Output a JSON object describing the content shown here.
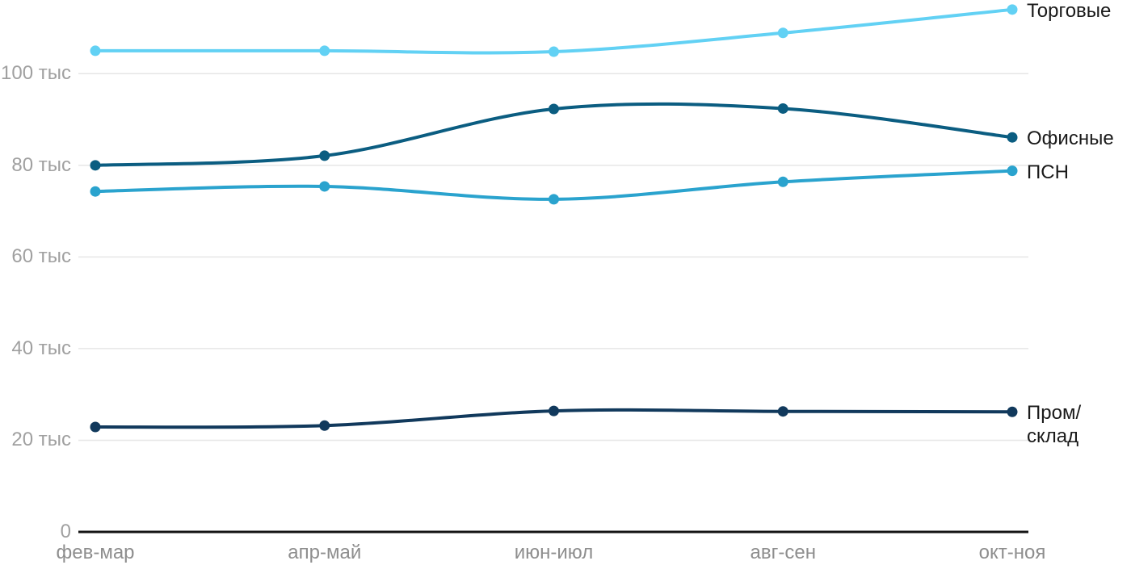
{
  "chart_data": {
    "type": "line",
    "categories": [
      "фев-мар",
      "апр-май",
      "июн-июл",
      "авг-сен",
      "окт-ноя"
    ],
    "y_axis": {
      "ticks": [
        {
          "value": 0,
          "label": "0"
        },
        {
          "value": 20000,
          "label": "20 тыс"
        },
        {
          "value": 40000,
          "label": "40 тыс"
        },
        {
          "value": 60000,
          "label": "60 тыс"
        },
        {
          "value": 80000,
          "label": "80 тыс"
        },
        {
          "value": 100000,
          "label": "100 тыс"
        }
      ],
      "range": [
        0,
        116000
      ],
      "grid": true
    },
    "series": [
      {
        "name": "Торговые",
        "color": "#62d1f4",
        "values": [
          105000,
          105000,
          104800,
          108900,
          114000
        ]
      },
      {
        "name": "Офисные",
        "color": "#0b5d81",
        "values": [
          80000,
          82100,
          92300,
          92400,
          86100
        ]
      },
      {
        "name": "ПСН",
        "color": "#2aa3ce",
        "values": [
          74300,
          75400,
          72600,
          76400,
          78800
        ]
      },
      {
        "name": "Пром/склад",
        "color": "#11395c",
        "values": [
          22900,
          23200,
          26400,
          26300,
          26200
        ]
      }
    ],
    "legend_position": "right-of-line-ends",
    "title": "",
    "xlabel": "",
    "ylabel": ""
  },
  "colors": {
    "background": "#ffffff",
    "gridline": "#e6e6e6",
    "axis": "#141414",
    "y_tick_text": "#a0a0a0",
    "x_tick_text": "#8e8e8e",
    "series_label_text": "#1a1a1a"
  }
}
